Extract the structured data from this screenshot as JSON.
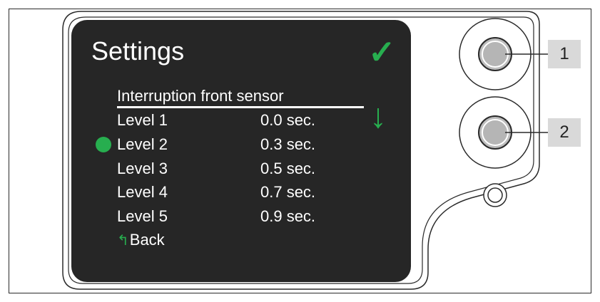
{
  "screen": {
    "title": "Settings",
    "confirm_icon": "check-icon",
    "down_icon": "arrow-down-icon",
    "subtitle": "Interruption front sensor",
    "levels": [
      {
        "label": "Level 1",
        "value": "0.0 sec.",
        "selected": false
      },
      {
        "label": "Level 2",
        "value": "0.3 sec.",
        "selected": true
      },
      {
        "label": "Level 3",
        "value": "0.5 sec.",
        "selected": false
      },
      {
        "label": "Level 4",
        "value": "0.7 sec.",
        "selected": false
      },
      {
        "label": "Level 5",
        "value": "0.9 sec.",
        "selected": false
      }
    ],
    "back_label": "Back",
    "back_icon": "return-arrow-icon"
  },
  "callouts": {
    "button_1": "1",
    "button_2": "2"
  },
  "colors": {
    "screen_bg": "#262626",
    "accent_green": "#27ae4f",
    "callout_bg": "#d9d9d9"
  }
}
